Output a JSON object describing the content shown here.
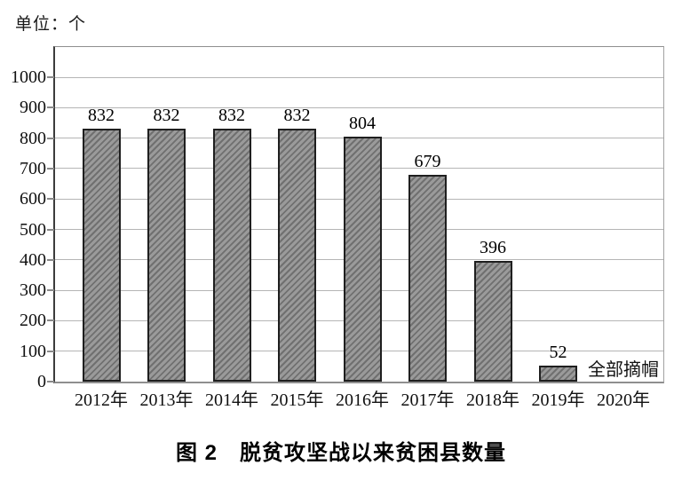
{
  "unit_label": "单位：个",
  "caption": "图 2　脱贫攻坚战以来贫困县数量",
  "chart_data": {
    "type": "bar",
    "title": "图 2　脱贫攻坚战以来贫困县数量",
    "unit": "单位：个",
    "categories": [
      "2012年",
      "2013年",
      "2014年",
      "2015年",
      "2016年",
      "2017年",
      "2018年",
      "2019年",
      "2020年"
    ],
    "values": [
      832,
      832,
      832,
      832,
      804,
      679,
      396,
      52,
      null
    ],
    "bar_value_labels": [
      "832",
      "832",
      "832",
      "832",
      "804",
      "679",
      "396",
      "52",
      ""
    ],
    "annotation": {
      "text": "全部摘帽",
      "category": "2020年",
      "position": "baseline"
    },
    "ylim": [
      0,
      1000
    ],
    "yticks": [
      0,
      100,
      200,
      300,
      400,
      500,
      600,
      700,
      800,
      900,
      1000
    ],
    "grid": true,
    "legend": false,
    "xlabel": "",
    "ylabel": "",
    "colors": {
      "bar_fill": "#9a9a9a",
      "bar_hatch": "#707070",
      "bar_border": "#1f1f1f",
      "gridline": "#b5b5b5",
      "axis": "#3c3c3c"
    }
  }
}
